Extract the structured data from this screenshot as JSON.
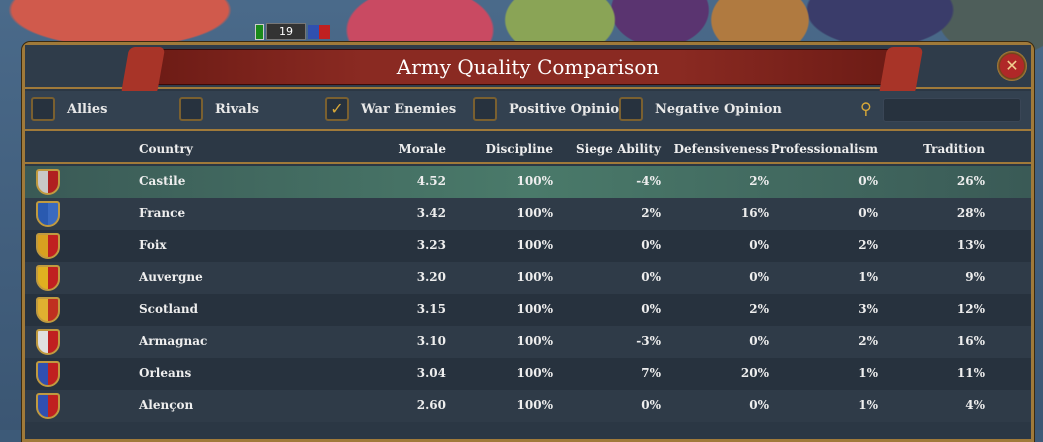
{
  "map_unit": {
    "count": "19"
  },
  "window": {
    "title": "Army Quality Comparison",
    "close_icon": "close-icon"
  },
  "filters": [
    {
      "label": "Allies",
      "checked": false
    },
    {
      "label": "Rivals",
      "checked": false
    },
    {
      "label": "War Enemies",
      "checked": true
    },
    {
      "label": "Positive Opinion",
      "checked": false
    },
    {
      "label": "Negative Opinion",
      "checked": false
    }
  ],
  "search": {
    "value": "",
    "icon": "magnifier-icon"
  },
  "columns": [
    "Country",
    "Morale",
    "Discipline",
    "Siege Ability",
    "Defensiveness",
    "Professionalism",
    "Tradition"
  ],
  "rows": [
    {
      "country": "Castile",
      "morale": "4.52",
      "discipline": "100%",
      "siege": "-4%",
      "defensiveness": "2%",
      "professionalism": "0%",
      "tradition": "26%",
      "colors": [
        "#c8c8c8",
        "#b02020"
      ],
      "selected": true
    },
    {
      "country": "France",
      "morale": "3.42",
      "discipline": "100%",
      "siege": "2%",
      "defensiveness": "16%",
      "professionalism": "0%",
      "tradition": "28%",
      "colors": [
        "#2a5ab0",
        "#3a6ac0"
      ]
    },
    {
      "country": "Foix",
      "morale": "3.23",
      "discipline": "100%",
      "siege": "0%",
      "defensiveness": "0%",
      "professionalism": "2%",
      "tradition": "13%",
      "colors": [
        "#d8a020",
        "#c02020"
      ]
    },
    {
      "country": "Auvergne",
      "morale": "3.20",
      "discipline": "100%",
      "siege": "0%",
      "defensiveness": "0%",
      "professionalism": "1%",
      "tradition": "9%",
      "colors": [
        "#e0b020",
        "#c02020"
      ]
    },
    {
      "country": "Scotland",
      "morale": "3.15",
      "discipline": "100%",
      "siege": "0%",
      "defensiveness": "2%",
      "professionalism": "3%",
      "tradition": "12%",
      "colors": [
        "#e0b030",
        "#c03020"
      ]
    },
    {
      "country": "Armagnac",
      "morale": "3.10",
      "discipline": "100%",
      "siege": "-3%",
      "defensiveness": "0%",
      "professionalism": "2%",
      "tradition": "16%",
      "colors": [
        "#e0e0e0",
        "#c02020"
      ]
    },
    {
      "country": "Orleans",
      "morale": "3.04",
      "discipline": "100%",
      "siege": "7%",
      "defensiveness": "20%",
      "professionalism": "1%",
      "tradition": "11%",
      "colors": [
        "#3050b0",
        "#c02020"
      ]
    },
    {
      "country": "Alençon",
      "morale": "2.60",
      "discipline": "100%",
      "siege": "0%",
      "defensiveness": "0%",
      "professionalism": "1%",
      "tradition": "4%",
      "colors": [
        "#3050b0",
        "#c02020"
      ]
    }
  ]
}
